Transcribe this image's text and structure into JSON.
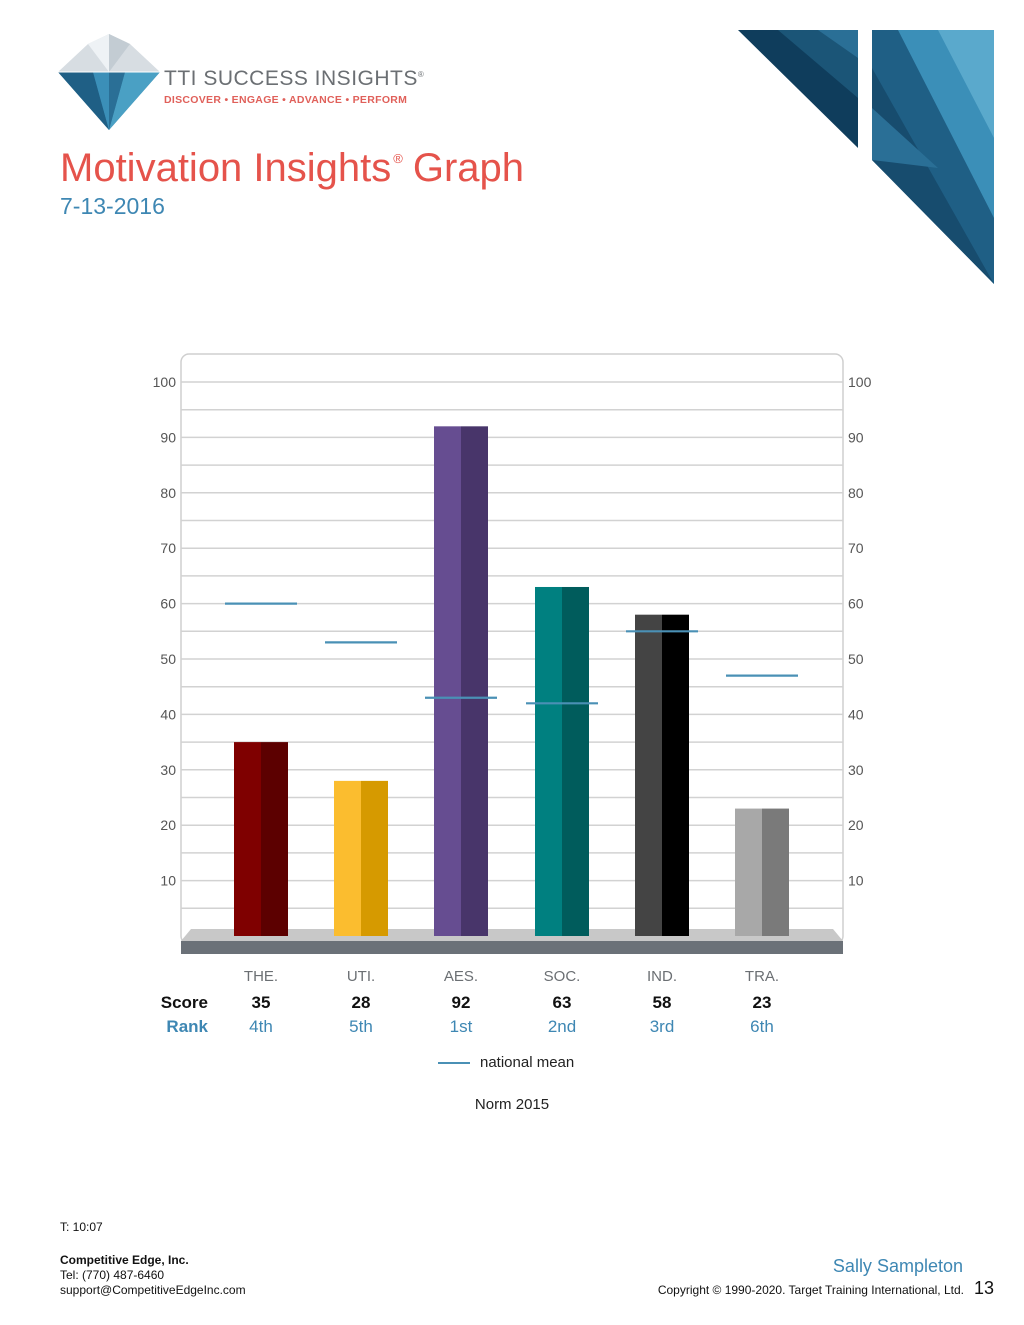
{
  "header": {
    "brand_name": "TTI SUCCESS INSIGHTS",
    "brand_reg": "®",
    "tagline": "DISCOVER • ENGAGE • ADVANCE • PERFORM",
    "logo_icon": "diamond-logo-icon",
    "corner_art_icon": "blue-triangles-decoration"
  },
  "page": {
    "title_part1": "Motivation Insights",
    "title_reg": "®",
    "title_part2": "Graph",
    "date": "7-13-2016"
  },
  "chart_data": {
    "type": "bar",
    "categories": [
      "THE.",
      "UTI.",
      "AES.",
      "SOC.",
      "IND.",
      "TRA."
    ],
    "series": [
      {
        "values": [
          35,
          28,
          92,
          63,
          58,
          23
        ]
      },
      {
        "name": "national mean",
        "values": [
          60,
          53,
          43,
          42,
          55,
          47
        ]
      }
    ],
    "ranks": [
      "4th",
      "5th",
      "1st",
      "2nd",
      "3rd",
      "6th"
    ],
    "row_labels": {
      "score": "Score",
      "rank": "Rank"
    },
    "y_ticks": [
      10,
      20,
      30,
      40,
      50,
      60,
      70,
      80,
      90,
      100
    ],
    "ylim": [
      0,
      100
    ],
    "grid": true,
    "legend": "bottom-center",
    "legend_label": "national mean",
    "note": "Norm 2015",
    "colors": {
      "bars_light": [
        "#7f0000",
        "#fbbd2f",
        "#664d91",
        "#008080",
        "#444444",
        "#a8a8a8"
      ],
      "bars_dark": [
        "#5c0000",
        "#d69a00",
        "#48356a",
        "#005c5c",
        "#000000",
        "#7a7a7a"
      ],
      "mean_line": "#4a90b5",
      "axis_blue": "#3e87b3"
    }
  },
  "footer": {
    "time": "T: 10:07",
    "company": "Competitive Edge, Inc.",
    "tel": "Tel:  (770) 487-6460",
    "email": "support@CompetitiveEdgeInc.com",
    "person": "Sally Sampleton",
    "copyright": "Copyright © 1990-2020. Target Training International, Ltd.",
    "page_number": "13"
  }
}
